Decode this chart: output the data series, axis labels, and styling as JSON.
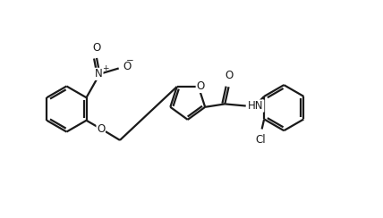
{
  "background_color": "#ffffff",
  "line_color": "#1a1a1a",
  "line_width": 1.6,
  "figsize": [
    4.28,
    2.44
  ],
  "dpi": 100,
  "xlim": [
    0,
    10
  ],
  "ylim": [
    0,
    5.7
  ],
  "font_size": 8.5
}
